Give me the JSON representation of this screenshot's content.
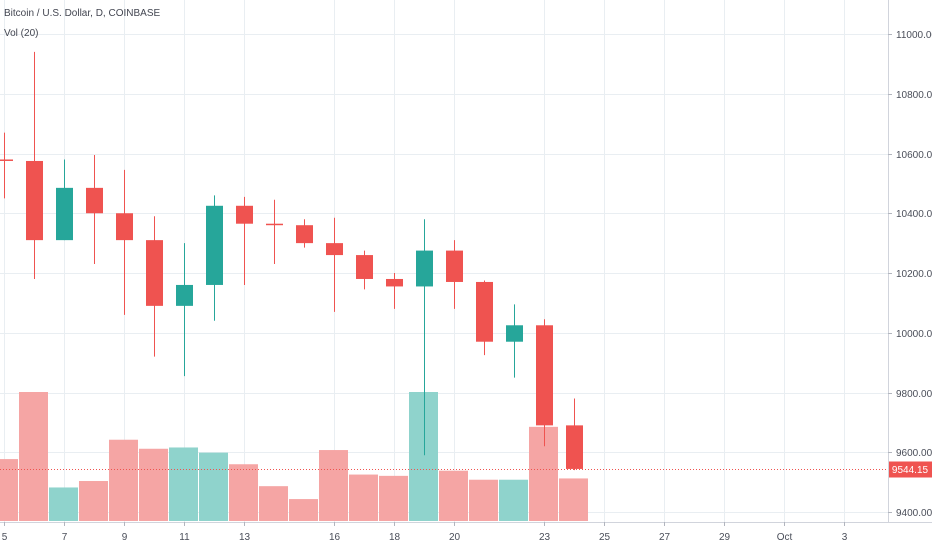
{
  "legend": {
    "symbol": "Bitcoin / U.S. Dollar, D, COINBASE",
    "volume": "Vol (20)"
  },
  "price_label": "9544.15",
  "colors": {
    "up": "#26a69a",
    "down": "#ef5350",
    "up_volume": "#8fd3cc",
    "down_volume": "#f5a5a4",
    "price_line": "#ef5350"
  },
  "chart_data": {
    "type": "candlestick",
    "y_axis": {
      "min": 9380,
      "max": 11100,
      "ticks": [
        "9400.00",
        "9600.00",
        "9800.00",
        "10000.00",
        "10200.00",
        "10400.00",
        "10600.00",
        "10800.00",
        "11000.00"
      ]
    },
    "x_axis": {
      "ticks": [
        {
          "label": "5",
          "day": 5
        },
        {
          "label": "7",
          "day": 7
        },
        {
          "label": "9",
          "day": 9
        },
        {
          "label": "11",
          "day": 11
        },
        {
          "label": "13",
          "day": 13
        },
        {
          "label": "16",
          "day": 16
        },
        {
          "label": "18",
          "day": 18
        },
        {
          "label": "20",
          "day": 20
        },
        {
          "label": "23",
          "day": 23
        },
        {
          "label": "25",
          "day": 25
        },
        {
          "label": "27",
          "day": 27
        },
        {
          "label": "29",
          "day": 29
        },
        {
          "label": "Oct",
          "day": 31
        },
        {
          "label": "3",
          "day": 33
        }
      ]
    },
    "candles": [
      {
        "day": 5,
        "open": 10580,
        "high": 10670,
        "low": 10450,
        "close": 10575,
        "volume_pct": 0.48
      },
      {
        "day": 6,
        "open": 10575,
        "high": 10940,
        "low": 10180,
        "close": 10310,
        "volume_pct": 1.0
      },
      {
        "day": 7,
        "open": 10310,
        "high": 10580,
        "low": 10310,
        "close": 10485,
        "volume_pct": 0.26
      },
      {
        "day": 8,
        "open": 10485,
        "high": 10595,
        "low": 10230,
        "close": 10400,
        "volume_pct": 0.31
      },
      {
        "day": 9,
        "open": 10400,
        "high": 10545,
        "low": 10060,
        "close": 10310,
        "volume_pct": 0.63
      },
      {
        "day": 10,
        "open": 10310,
        "high": 10390,
        "low": 9920,
        "close": 10090,
        "volume_pct": 0.56
      },
      {
        "day": 11,
        "open": 10090,
        "high": 10300,
        "low": 9855,
        "close": 10160,
        "volume_pct": 0.57
      },
      {
        "day": 12,
        "open": 10160,
        "high": 10460,
        "low": 10040,
        "close": 10425,
        "volume_pct": 0.53
      },
      {
        "day": 13,
        "open": 10425,
        "high": 10455,
        "low": 10160,
        "close": 10365,
        "volume_pct": 0.44
      },
      {
        "day": 14,
        "open": 10365,
        "high": 10445,
        "low": 10230,
        "close": 10360,
        "volume_pct": 0.27
      },
      {
        "day": 15,
        "open": 10360,
        "high": 10380,
        "low": 10285,
        "close": 10300,
        "volume_pct": 0.17
      },
      {
        "day": 16,
        "open": 10300,
        "high": 10385,
        "low": 10070,
        "close": 10260,
        "volume_pct": 0.55
      },
      {
        "day": 17,
        "open": 10260,
        "high": 10275,
        "low": 10145,
        "close": 10180,
        "volume_pct": 0.36
      },
      {
        "day": 18,
        "open": 10180,
        "high": 10200,
        "low": 10080,
        "close": 10155,
        "volume_pct": 0.35
      },
      {
        "day": 19,
        "open": 10155,
        "high": 10380,
        "low": 9590,
        "close": 10275,
        "volume_pct": 1.0
      },
      {
        "day": 20,
        "open": 10275,
        "high": 10310,
        "low": 10080,
        "close": 10170,
        "volume_pct": 0.39
      },
      {
        "day": 21,
        "open": 10170,
        "high": 10175,
        "low": 9925,
        "close": 9970,
        "volume_pct": 0.32
      },
      {
        "day": 22,
        "open": 9970,
        "high": 10095,
        "low": 9850,
        "close": 10025,
        "volume_pct": 0.32
      },
      {
        "day": 23,
        "open": 10025,
        "high": 10045,
        "low": 9620,
        "close": 9690,
        "volume_pct": 0.73
      },
      {
        "day": 24,
        "open": 9690,
        "high": 9780,
        "low": 9540,
        "close": 9544.15,
        "volume_pct": 0.33
      }
    ]
  }
}
